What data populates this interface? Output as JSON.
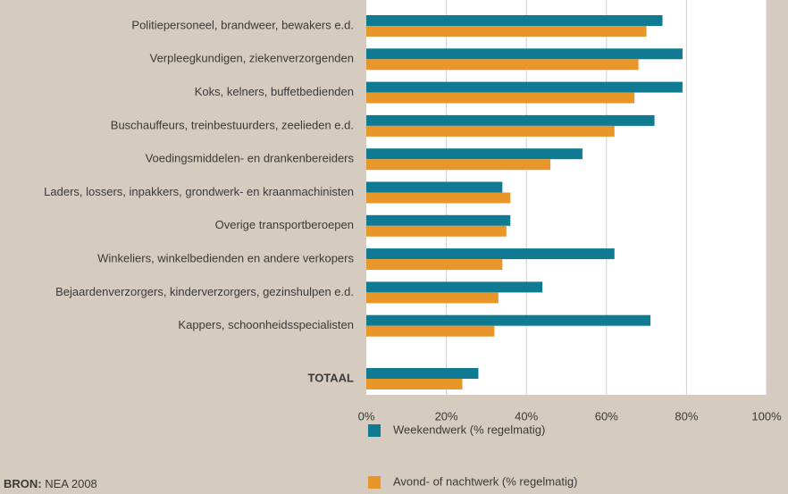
{
  "chart_data": {
    "type": "hbar",
    "categories": [
      "Politiepersoneel, brandweer, bewakers e.d.",
      "Verpleegkundigen, ziekenverzorgenden",
      "Koks, kelners, buffetbedienden",
      "Buschauffeurs, treinbestuurders, zeelieden e.d.",
      "Voedingsmiddelen- en drankenbereiders",
      "Laders, lossers, inpakkers, grondwerk- en kraanmachinisten",
      "Overige transportberoepen",
      "Winkeliers, winkelbedienden en andere verkopers",
      "Bejaardenverzorgers, kinderverzorgers, gezinshulpen e.d.",
      "Kappers, schoonheidsspecialisten",
      "TOTAAL"
    ],
    "series": [
      {
        "name": "Weekendwerk (% regelmatig)",
        "color": "#0f7a92",
        "values": [
          74,
          79,
          79,
          72,
          54,
          34,
          36,
          62,
          44,
          71,
          28
        ]
      },
      {
        "name": "Avond- of nachtwerk (% regelmatig)",
        "color": "#e8962a",
        "values": [
          70,
          68,
          67,
          62,
          46,
          36,
          35,
          34,
          33,
          32,
          24
        ]
      }
    ],
    "xlim": [
      0,
      100
    ],
    "xticks": [
      {
        "value": 0,
        "label": "0%"
      },
      {
        "value": 20,
        "label": "20%"
      },
      {
        "value": 40,
        "label": "40%"
      },
      {
        "value": 60,
        "label": "60%"
      },
      {
        "value": 80,
        "label": "80%"
      },
      {
        "value": 100,
        "label": "100%"
      }
    ],
    "grid": true,
    "source_label": "BRON:",
    "source": "NEA 2008"
  }
}
